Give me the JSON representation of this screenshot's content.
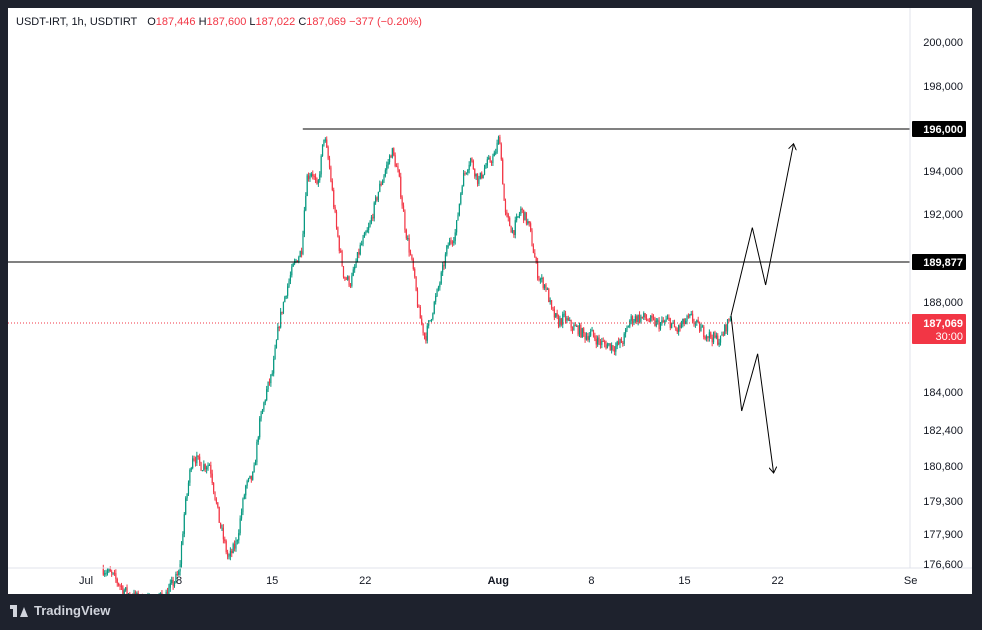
{
  "header": {
    "symbol": "USDT-IRT",
    "interval": "1h",
    "exchange": "USDTIRT",
    "o_label": "O",
    "o_value": "187,446",
    "h_label": "H",
    "h_value": "187,600",
    "l_label": "L",
    "l_value": "187,022",
    "c_label": "C",
    "c_value": "187,069",
    "change": "−377 (−0.20%)"
  },
  "footer": {
    "brand": "TradingView"
  },
  "colors": {
    "up": "#089981",
    "down": "#f23645",
    "line": "#000000",
    "price_tag": "#f23645"
  },
  "chart_data": {
    "type": "candlestick",
    "y_ticks": [
      "200,000",
      "198,000",
      "194,000",
      "192,000",
      "188,000",
      "184,000",
      "182,400",
      "180,800",
      "179,300",
      "177,900",
      "176,600"
    ],
    "y_tick_values": [
      200000,
      198000,
      194000,
      192000,
      188000,
      184000,
      182400,
      180800,
      179300,
      177900,
      176600
    ],
    "x_ticks": [
      "Jul",
      "8",
      "15",
      "22",
      "Aug",
      "8",
      "15",
      "22",
      "Se"
    ],
    "x_tick_days": [
      0,
      7,
      14,
      21,
      31,
      38,
      45,
      52,
      62
    ],
    "x_tick_bold": [
      false,
      false,
      false,
      false,
      true,
      false,
      false,
      false,
      false
    ],
    "horizontal_levels": [
      {
        "label": "196,000",
        "value": 196000,
        "start_day": 16.3
      },
      {
        "label": "189,877",
        "value": 189877,
        "start_day": null
      }
    ],
    "current_price": {
      "label": "187,069",
      "countdown": "30:00",
      "value": 187069
    },
    "price_path_daily": [
      [
        1.3,
        176400
      ],
      [
        2,
        176100
      ],
      [
        3,
        175400
      ],
      [
        4,
        175100
      ],
      [
        5,
        175000
      ],
      [
        6,
        175300
      ],
      [
        7,
        176200
      ],
      [
        7.4,
        178800
      ],
      [
        8,
        181300
      ],
      [
        8.7,
        180800
      ],
      [
        9.3,
        180900
      ],
      [
        10,
        178500
      ],
      [
        10.7,
        176800
      ],
      [
        11.3,
        177500
      ],
      [
        12,
        179900
      ],
      [
        12.6,
        180400
      ],
      [
        13,
        182500
      ],
      [
        13.6,
        184100
      ],
      [
        14,
        184800
      ],
      [
        14.5,
        187000
      ],
      [
        15,
        188400
      ],
      [
        15.6,
        189700
      ],
      [
        16.2,
        190400
      ],
      [
        16.6,
        193700
      ],
      [
        17,
        194000
      ],
      [
        17.4,
        193100
      ],
      [
        17.9,
        195700
      ],
      [
        18.3,
        194200
      ],
      [
        18.8,
        191500
      ],
      [
        19.4,
        189200
      ],
      [
        19.9,
        188900
      ],
      [
        20.6,
        190500
      ],
      [
        21.3,
        191400
      ],
      [
        22,
        193100
      ],
      [
        22.6,
        194200
      ],
      [
        23,
        195000
      ],
      [
        23.5,
        193800
      ],
      [
        24,
        191400
      ],
      [
        24.6,
        189500
      ],
      [
        25,
        187600
      ],
      [
        25.5,
        186400
      ],
      [
        26,
        187500
      ],
      [
        26.6,
        188900
      ],
      [
        27.2,
        190600
      ],
      [
        27.8,
        191200
      ],
      [
        28.3,
        193600
      ],
      [
        28.9,
        194600
      ],
      [
        29.5,
        193500
      ],
      [
        30.1,
        194300
      ],
      [
        30.7,
        194700
      ],
      [
        31.1,
        195700
      ],
      [
        31.5,
        192000
      ],
      [
        32.1,
        191200
      ],
      [
        32.7,
        192200
      ],
      [
        33.3,
        191500
      ],
      [
        34,
        189200
      ],
      [
        34.6,
        188700
      ],
      [
        35,
        187600
      ],
      [
        35.5,
        187100
      ],
      [
        36,
        187300
      ],
      [
        36.5,
        186900
      ],
      [
        37,
        186800
      ],
      [
        37.5,
        186500
      ],
      [
        38,
        186600
      ],
      [
        38.6,
        186200
      ],
      [
        39.2,
        186100
      ],
      [
        39.8,
        186000
      ],
      [
        40.4,
        186300
      ],
      [
        40.9,
        187200
      ],
      [
        41.4,
        187300
      ],
      [
        42,
        187300
      ],
      [
        42.6,
        187100
      ],
      [
        43.2,
        187000
      ],
      [
        43.8,
        187200
      ],
      [
        44.4,
        186700
      ],
      [
        45,
        187100
      ],
      [
        45.5,
        187300
      ],
      [
        46,
        186900
      ],
      [
        46.6,
        186600
      ],
      [
        47.2,
        186400
      ],
      [
        47.7,
        186300
      ],
      [
        48.1,
        186900
      ],
      [
        48.5,
        187400
      ]
    ],
    "projection_up": [
      [
        48.5,
        187400
      ],
      [
        50.1,
        191400
      ],
      [
        51.1,
        188800
      ],
      [
        53.2,
        195300
      ]
    ],
    "projection_down": [
      [
        48.5,
        187400
      ],
      [
        49.3,
        183200
      ],
      [
        50.5,
        185700
      ],
      [
        51.7,
        180500
      ]
    ]
  }
}
